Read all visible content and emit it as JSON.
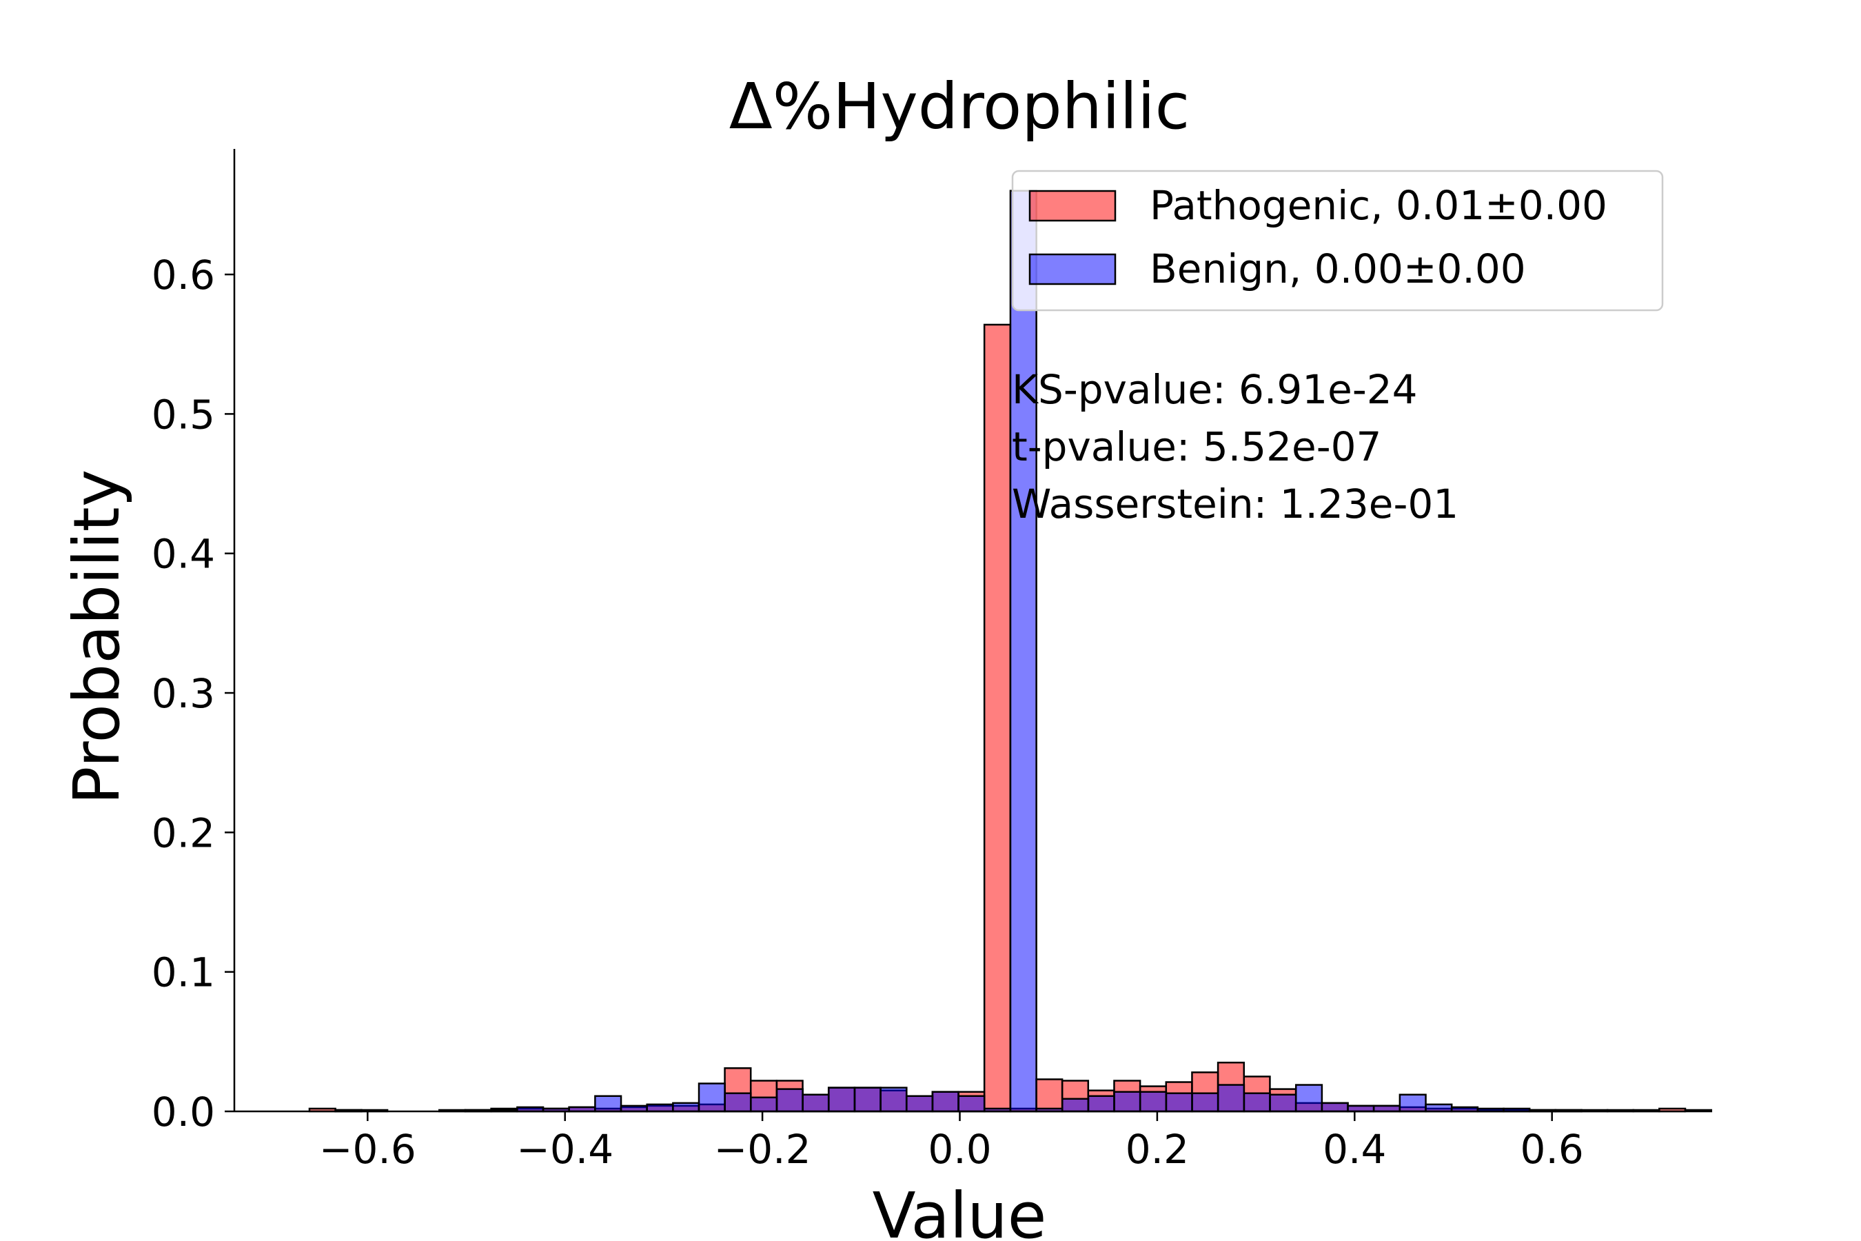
{
  "chart_data": {
    "type": "bar",
    "title": "Δ%Hydrophilic",
    "xlabel": "Value",
    "ylabel": "Probability",
    "xlim": [
      -0.735,
      0.735
    ],
    "ylim": [
      0,
      0.69
    ],
    "xticks": [
      -0.6,
      -0.4,
      -0.2,
      0.0,
      0.2,
      0.4,
      0.6
    ],
    "xtick_labels": [
      "−0.6",
      "−0.4",
      "−0.2",
      "0.0",
      "0.2",
      "0.4",
      "0.6"
    ],
    "yticks": [
      0.0,
      0.1,
      0.2,
      0.3,
      0.4,
      0.5,
      0.6
    ],
    "ytick_labels": [
      "0.0",
      "0.1",
      "0.2",
      "0.3",
      "0.4",
      "0.5",
      "0.6"
    ],
    "legend_position": "top-right",
    "annotation_lines": [
      "KS-pvalue: 6.91e-24",
      "t-pvalue: 5.52e-07",
      "Wasserstein: 1.23e-01"
    ],
    "series": [
      {
        "name": "Pathogenic, 0.01±0.00",
        "color": "#ff0000",
        "bin_width": 0.0263,
        "bin_start": -0.6589,
        "values": [
          0.002,
          0.001,
          0,
          0,
          0,
          0.001,
          0.001,
          0.002,
          0.002,
          0.002,
          0.003,
          0.002,
          0.003,
          0.004,
          0.004,
          0.005,
          0.031,
          0.022,
          0.022,
          0.012,
          0.017,
          0.017,
          0.015,
          0.011,
          0.014,
          0.014,
          0.564,
          0.002,
          0.023,
          0.022,
          0.015,
          0.022,
          0.018,
          0.021,
          0.028,
          0.035,
          0.025,
          0.016,
          0.006,
          0.006,
          0.004,
          0.004,
          0.003,
          0.002,
          0.002,
          0.001,
          0.001,
          0.001,
          0.001,
          0,
          0,
          0.001,
          0.002
        ]
      },
      {
        "name": "Benign, 0.00±0.00",
        "color": "#0000ff",
        "bin_width": 0.0263,
        "bin_start": -0.6325,
        "values": [
          0.001,
          0.001,
          0,
          0,
          0,
          0.001,
          0.001,
          0.003,
          0.002,
          0.003,
          0.011,
          0.004,
          0.005,
          0.006,
          0.02,
          0.013,
          0.01,
          0.016,
          0.012,
          0.017,
          0.017,
          0.017,
          0.011,
          0.014,
          0.011,
          0.002,
          0.66,
          0.002,
          0.009,
          0.011,
          0.014,
          0.014,
          0.013,
          0.013,
          0.019,
          0.013,
          0.012,
          0.019,
          0.006,
          0.004,
          0.004,
          0.012,
          0.005,
          0.003,
          0.002,
          0.002,
          0.001,
          0.001,
          0.001,
          0.001,
          0,
          0,
          0.001
        ]
      }
    ]
  }
}
